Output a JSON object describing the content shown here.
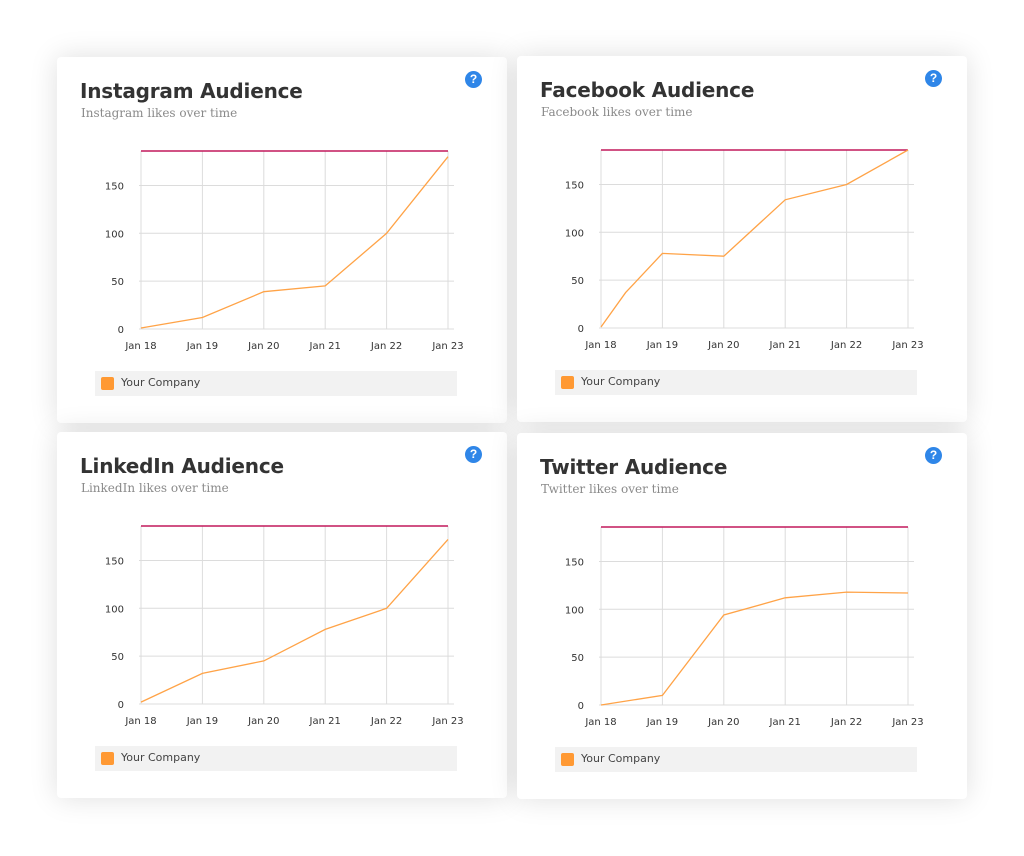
{
  "colors": {
    "series": "#ffa347",
    "reference_line": "#c2185b",
    "grid": "#dcdcdc",
    "legend_swatch": "#ff9933",
    "help_icon": "#2f86e8"
  },
  "cards": [
    {
      "title": "Instagram Audience",
      "subtitle": "Instagram likes over time",
      "help_icon": "?",
      "legend_label": "Your Company",
      "chart_data": {
        "type": "line",
        "categories": [
          "Jan 18",
          "Jan 19",
          "Jan 20",
          "Jan 21",
          "Jan 22",
          "Jan 23"
        ],
        "series": [
          {
            "name": "Your Company",
            "values": [
              1,
              12,
              39,
              45,
              100,
              180
            ]
          }
        ],
        "reference_line": 186,
        "yticks": [
          0,
          50,
          100,
          150
        ],
        "ylim": [
          0,
          186
        ],
        "grid": true,
        "legend": "bottom"
      }
    },
    {
      "title": "Facebook Audience",
      "subtitle": "Facebook likes over time",
      "help_icon": "?",
      "legend_label": "Your Company",
      "chart_data": {
        "type": "line",
        "x": [
          0,
          0.4,
          1,
          2,
          3,
          4,
          5
        ],
        "categories": [
          "Jan 18",
          "Jan 19",
          "Jan 20",
          "Jan 21",
          "Jan 22",
          "Jan 23"
        ],
        "series": [
          {
            "name": "Your Company",
            "values": [
              1,
              37,
              78,
              75,
              134,
              150,
              186
            ]
          }
        ],
        "reference_line": 186,
        "yticks": [
          0,
          50,
          100,
          150
        ],
        "ylim": [
          0,
          186
        ],
        "grid": true,
        "legend": "bottom"
      }
    },
    {
      "title": "LinkedIn Audience",
      "subtitle": "LinkedIn likes over time",
      "help_icon": "?",
      "legend_label": "Your Company",
      "chart_data": {
        "type": "line",
        "categories": [
          "Jan 18",
          "Jan 19",
          "Jan 20",
          "Jan 21",
          "Jan 22",
          "Jan 23"
        ],
        "series": [
          {
            "name": "Your Company",
            "values": [
              2,
              32,
              45,
              78,
              100,
              172
            ]
          }
        ],
        "reference_line": 186,
        "yticks": [
          0,
          50,
          100,
          150
        ],
        "ylim": [
          0,
          186
        ],
        "grid": true,
        "legend": "bottom"
      }
    },
    {
      "title": "Twitter Audience",
      "subtitle": "Twitter likes over time",
      "help_icon": "?",
      "legend_label": "Your Company",
      "chart_data": {
        "type": "line",
        "categories": [
          "Jan 18",
          "Jan 19",
          "Jan 20",
          "Jan 21",
          "Jan 22",
          "Jan 23"
        ],
        "series": [
          {
            "name": "Your Company",
            "values": [
              0,
              10,
              94,
              112,
              118,
              117
            ]
          }
        ],
        "reference_line": 186,
        "yticks": [
          0,
          50,
          100,
          150
        ],
        "ylim": [
          0,
          186
        ],
        "grid": true,
        "legend": "bottom"
      }
    }
  ]
}
